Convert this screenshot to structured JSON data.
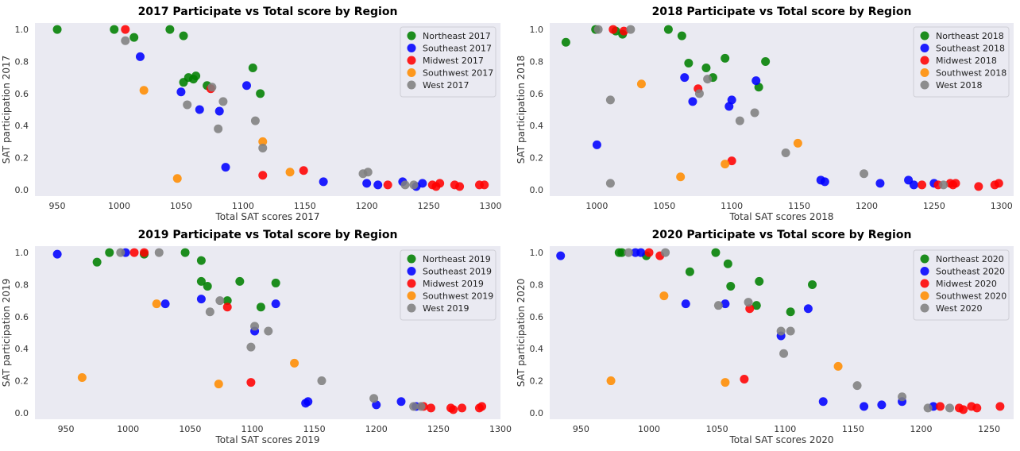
{
  "chart_data": [
    {
      "type": "scatter",
      "title": "2017 Participate vs Total score by Region",
      "xlabel": "Total SAT scores 2017",
      "ylabel": "SAT participation 2017",
      "xlim": [
        932,
        1308
      ],
      "ylim": [
        -0.04,
        1.04
      ],
      "xticks": [
        950,
        1000,
        1050,
        1100,
        1150,
        1200,
        1250,
        1300
      ],
      "yticks": [
        0.0,
        0.2,
        0.4,
        0.6,
        0.8,
        1.0
      ],
      "grid": false,
      "legend": "top-right",
      "series": [
        {
          "name": "Northeast 2017",
          "color": "#008000",
          "points": [
            [
              950,
              1.0
            ],
            [
              996,
              1.0
            ],
            [
              1012,
              0.95
            ],
            [
              1041,
              1.0
            ],
            [
              1052,
              0.96
            ],
            [
              1052,
              0.67
            ],
            [
              1056,
              0.7
            ],
            [
              1060,
              0.69
            ],
            [
              1062,
              0.71
            ],
            [
              1071,
              0.65
            ],
            [
              1108,
              0.76
            ],
            [
              1114,
              0.6
            ]
          ]
        },
        {
          "name": "Southeast 2017",
          "color": "#0000ff",
          "points": [
            [
              1017,
              0.83
            ],
            [
              1050,
              0.61
            ],
            [
              1065,
              0.5
            ],
            [
              1081,
              0.49
            ],
            [
              1086,
              0.14
            ],
            [
              1103,
              0.65
            ],
            [
              1165,
              0.05
            ],
            [
              1200,
              0.04
            ],
            [
              1209,
              0.03
            ],
            [
              1229,
              0.05
            ],
            [
              1240,
              0.02
            ],
            [
              1245,
              0.04
            ]
          ]
        },
        {
          "name": "Midwest 2017",
          "color": "#ff0000",
          "points": [
            [
              1005,
              1.0
            ],
            [
              1074,
              0.63
            ],
            [
              1116,
              0.09
            ],
            [
              1149,
              0.12
            ],
            [
              1217,
              0.03
            ],
            [
              1253,
              0.03
            ],
            [
              1256,
              0.02
            ],
            [
              1259,
              0.04
            ],
            [
              1271,
              0.03
            ],
            [
              1275,
              0.02
            ],
            [
              1291,
              0.03
            ],
            [
              1295,
              0.03
            ]
          ]
        },
        {
          "name": "Southwest 2017",
          "color": "#ff8c00",
          "points": [
            [
              1020,
              0.62
            ],
            [
              1047,
              0.07
            ],
            [
              1116,
              0.3
            ],
            [
              1138,
              0.11
            ]
          ]
        },
        {
          "name": "West 2017",
          "color": "#808080",
          "points": [
            [
              1005,
              0.93
            ],
            [
              1055,
              0.53
            ],
            [
              1075,
              0.64
            ],
            [
              1080,
              0.38
            ],
            [
              1084,
              0.55
            ],
            [
              1110,
              0.43
            ],
            [
              1116,
              0.26
            ],
            [
              1197,
              0.1
            ],
            [
              1201,
              0.11
            ],
            [
              1231,
              0.03
            ],
            [
              1238,
              0.03
            ]
          ]
        }
      ]
    },
    {
      "type": "scatter",
      "title": "2018 Participate vs Total score by Region",
      "xlabel": "Total SAT scores 2018",
      "ylabel": "SAT participation 2018",
      "xlim": [
        965,
        1309
      ],
      "ylim": [
        -0.04,
        1.04
      ],
      "xticks": [
        1000,
        1050,
        1100,
        1150,
        1200,
        1250,
        1300
      ],
      "yticks": [
        0.0,
        0.2,
        0.4,
        0.6,
        0.8,
        1.0
      ],
      "grid": false,
      "legend": "top-right",
      "series": [
        {
          "name": "Northeast 2018",
          "color": "#008000",
          "points": [
            [
              977,
              0.92
            ],
            [
              999,
              1.0
            ],
            [
              1014,
              0.99
            ],
            [
              1019,
              0.97
            ],
            [
              1053,
              1.0
            ],
            [
              1063,
              0.96
            ],
            [
              1068,
              0.79
            ],
            [
              1081,
              0.76
            ],
            [
              1086,
              0.7
            ],
            [
              1095,
              0.82
            ],
            [
              1120,
              0.64
            ],
            [
              1125,
              0.8
            ]
          ]
        },
        {
          "name": "Southeast 2018",
          "color": "#0000ff",
          "points": [
            [
              1000,
              0.28
            ],
            [
              1065,
              0.7
            ],
            [
              1071,
              0.55
            ],
            [
              1098,
              0.52
            ],
            [
              1100,
              0.56
            ],
            [
              1118,
              0.68
            ],
            [
              1166,
              0.06
            ],
            [
              1169,
              0.05
            ],
            [
              1210,
              0.04
            ],
            [
              1231,
              0.06
            ],
            [
              1235,
              0.03
            ],
            [
              1250,
              0.04
            ]
          ]
        },
        {
          "name": "Midwest 2018",
          "color": "#ff0000",
          "points": [
            [
              1012,
              1.0
            ],
            [
              1020,
              0.99
            ],
            [
              1075,
              0.63
            ],
            [
              1100,
              0.18
            ],
            [
              1241,
              0.03
            ],
            [
              1253,
              0.03
            ],
            [
              1262,
              0.04
            ],
            [
              1264,
              0.03
            ],
            [
              1266,
              0.04
            ],
            [
              1283,
              0.02
            ],
            [
              1295,
              0.03
            ],
            [
              1298,
              0.04
            ]
          ]
        },
        {
          "name": "Southwest 2018",
          "color": "#ff8c00",
          "points": [
            [
              1033,
              0.66
            ],
            [
              1062,
              0.08
            ],
            [
              1095,
              0.16
            ],
            [
              1149,
              0.29
            ]
          ]
        },
        {
          "name": "West 2018",
          "color": "#808080",
          "points": [
            [
              1001,
              1.0
            ],
            [
              1010,
              0.56
            ],
            [
              1010,
              0.04
            ],
            [
              1025,
              1.0
            ],
            [
              1076,
              0.6
            ],
            [
              1082,
              0.69
            ],
            [
              1106,
              0.43
            ],
            [
              1117,
              0.48
            ],
            [
              1140,
              0.23
            ],
            [
              1198,
              0.1
            ],
            [
              1257,
              0.03
            ]
          ]
        }
      ]
    },
    {
      "type": "scatter",
      "title": "2019 Participate vs Total score by Region",
      "xlabel": "Total SAT scores 2019",
      "ylabel": "SAT participation 2019",
      "xlim": [
        925,
        1300
      ],
      "ylim": [
        -0.04,
        1.04
      ],
      "xticks": [
        950,
        1000,
        1050,
        1100,
        1150,
        1200,
        1250,
        1300
      ],
      "yticks": [
        0.0,
        0.2,
        0.4,
        0.6,
        0.8,
        1.0
      ],
      "grid": false,
      "legend": "top-right",
      "series": [
        {
          "name": "Northeast 2019",
          "color": "#008000",
          "points": [
            [
              975,
              0.94
            ],
            [
              985,
              1.0
            ],
            [
              1013,
              0.99
            ],
            [
              1046,
              1.0
            ],
            [
              1059,
              0.95
            ],
            [
              1059,
              0.82
            ],
            [
              1064,
              0.79
            ],
            [
              1080,
              0.7
            ],
            [
              1090,
              0.82
            ],
            [
              1107,
              0.66
            ],
            [
              1119,
              0.81
            ]
          ]
        },
        {
          "name": "Southeast 2019",
          "color": "#0000ff",
          "points": [
            [
              943,
              0.99
            ],
            [
              998,
              1.0
            ],
            [
              1030,
              0.68
            ],
            [
              1059,
              0.71
            ],
            [
              1102,
              0.51
            ],
            [
              1119,
              0.68
            ],
            [
              1143,
              0.06
            ],
            [
              1145,
              0.07
            ],
            [
              1200,
              0.05
            ],
            [
              1220,
              0.07
            ],
            [
              1232,
              0.04
            ]
          ]
        },
        {
          "name": "Midwest 2019",
          "color": "#ff0000",
          "points": [
            [
              1005,
              1.0
            ],
            [
              1013,
              1.0
            ],
            [
              1080,
              0.66
            ],
            [
              1099,
              0.19
            ],
            [
              1238,
              0.04
            ],
            [
              1244,
              0.03
            ],
            [
              1260,
              0.03
            ],
            [
              1262,
              0.02
            ],
            [
              1269,
              0.03
            ],
            [
              1283,
              0.03
            ],
            [
              1285,
              0.04
            ]
          ]
        },
        {
          "name": "Southwest 2019",
          "color": "#ff8c00",
          "points": [
            [
              963,
              0.22
            ],
            [
              1023,
              0.68
            ],
            [
              1073,
              0.18
            ],
            [
              1134,
              0.31
            ]
          ]
        },
        {
          "name": "West 2019",
          "color": "#808080",
          "points": [
            [
              994,
              1.0
            ],
            [
              1025,
              1.0
            ],
            [
              1066,
              0.63
            ],
            [
              1074,
              0.7
            ],
            [
              1099,
              0.41
            ],
            [
              1102,
              0.54
            ],
            [
              1113,
              0.51
            ],
            [
              1156,
              0.2
            ],
            [
              1198,
              0.09
            ],
            [
              1230,
              0.04
            ],
            [
              1236,
              0.04
            ]
          ]
        }
      ]
    },
    {
      "type": "scatter",
      "title": "2020 Participate vs Total score by Region",
      "xlabel": "Total SAT scores 2020",
      "ylabel": "SAT participation 2020",
      "xlim": [
        927,
        1268
      ],
      "ylim": [
        -0.04,
        1.04
      ],
      "xticks": [
        950,
        1000,
        1050,
        1100,
        1150,
        1200,
        1250
      ],
      "yticks": [
        0.0,
        0.2,
        0.4,
        0.6,
        0.8,
        1.0
      ],
      "grid": false,
      "legend": "top-right",
      "series": [
        {
          "name": "Northeast 2020",
          "color": "#008000",
          "points": [
            [
              978,
              1.0
            ],
            [
              980,
              1.0
            ],
            [
              998,
              0.98
            ],
            [
              1030,
              0.88
            ],
            [
              1049,
              1.0
            ],
            [
              1058,
              0.93
            ],
            [
              1060,
              0.79
            ],
            [
              1079,
              0.67
            ],
            [
              1081,
              0.82
            ],
            [
              1104,
              0.63
            ],
            [
              1120,
              0.8
            ]
          ]
        },
        {
          "name": "Southeast 2020",
          "color": "#0000ff",
          "points": [
            [
              935,
              0.98
            ],
            [
              990,
              1.0
            ],
            [
              994,
              1.0
            ],
            [
              1027,
              0.68
            ],
            [
              1056,
              0.68
            ],
            [
              1097,
              0.48
            ],
            [
              1117,
              0.65
            ],
            [
              1128,
              0.07
            ],
            [
              1158,
              0.04
            ],
            [
              1171,
              0.05
            ],
            [
              1186,
              0.07
            ],
            [
              1209,
              0.04
            ]
          ]
        },
        {
          "name": "Midwest 2020",
          "color": "#ff0000",
          "points": [
            [
              1000,
              1.0
            ],
            [
              1008,
              0.98
            ],
            [
              1070,
              0.21
            ],
            [
              1074,
              0.65
            ],
            [
              1214,
              0.04
            ],
            [
              1228,
              0.03
            ],
            [
              1231,
              0.02
            ],
            [
              1237,
              0.04
            ],
            [
              1241,
              0.03
            ],
            [
              1258,
              0.04
            ]
          ]
        },
        {
          "name": "Southwest 2020",
          "color": "#ff8c00",
          "points": [
            [
              972,
              0.2
            ],
            [
              1011,
              0.73
            ],
            [
              1056,
              0.19
            ],
            [
              1139,
              0.29
            ]
          ]
        },
        {
          "name": "West 2020",
          "color": "#808080",
          "points": [
            [
              985,
              1.0
            ],
            [
              1012,
              1.0
            ],
            [
              1051,
              0.67
            ],
            [
              1073,
              0.69
            ],
            [
              1097,
              0.51
            ],
            [
              1099,
              0.37
            ],
            [
              1104,
              0.51
            ],
            [
              1153,
              0.17
            ],
            [
              1186,
              0.1
            ],
            [
              1205,
              0.03
            ],
            [
              1221,
              0.03
            ]
          ]
        }
      ]
    }
  ]
}
